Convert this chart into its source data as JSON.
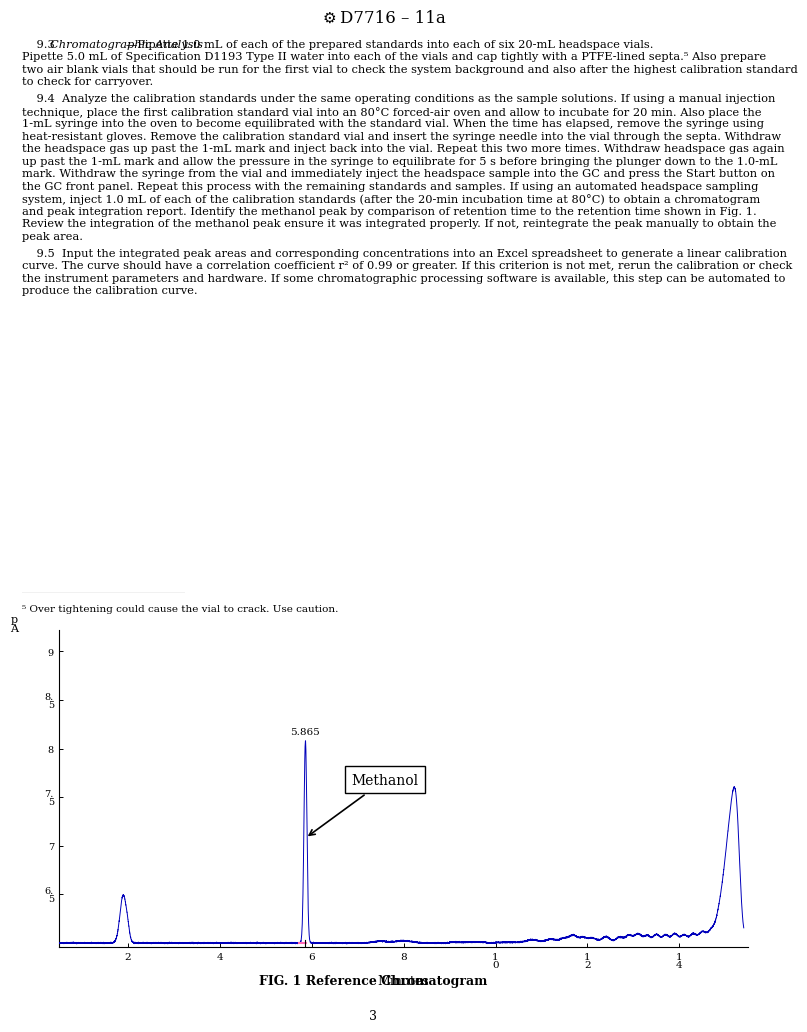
{
  "title": "D7716 – 11a",
  "fig_caption": "FIG. 1 Reference Chromatogram",
  "page_number": "3",
  "ylabel_top": "p",
  "ylabel_bot": "A",
  "xlabel": "Minutes",
  "line_color": "#0000BB",
  "pink_color": "#FF69B4",
  "annotation_label": "Methanol",
  "peak_label": "5.865",
  "peak_x": 5.865,
  "ylim_bottom": 5.96,
  "ylim_top": 9.22,
  "xlim_left": 0.5,
  "xlim_right": 15.5,
  "ytick_positions": [
    6.5,
    7.0,
    7.5,
    8.0,
    8.5,
    9.0
  ],
  "xtick_positions": [
    2,
    4,
    6,
    8,
    10,
    12,
    14
  ],
  "footnote": "⁵ Over tightening could cause the vial to crack. Use caution.",
  "para93_indent": "    9.3  ",
  "para93_italic": "Chromatographic Analysis",
  "para93_rest": "—Pipette 1.0 mL of each of the prepared standards into each of six 20-mL headspace vials. Pipette 5.0 mL of Specification D1193 Type II water into each of the vials and cap tightly with a PTFE-lined septa.5 Also prepare two air blank vials that should be run for the first vial to check the system background and also after the highest calibration standard to check for carryover.",
  "para94": "    9.4  Analyze the calibration standards under the same operating conditions as the sample solutions. If using a manual injection technique, place the first calibration standard vial into an 80°C forced-air oven and allow to incubate for 20 min. Also place the 1-mL syringe into the oven to become equilibrated with the standard vial. When the time has elapsed, remove the syringe using heat-resistant gloves. Remove the calibration standard vial and insert the syringe needle into the vial through the septa. Withdraw the headspace gas up past the 1-mL mark and inject back into the vial. Repeat this two more times. Withdraw headspace gas again up past the 1-mL mark and allow the pressure in the syringe to equilibrate for 5 s before bringing the plunger down to the 1.0-mL mark. Withdraw the syringe from the vial and immediately inject the headspace sample into the GC and press the Start button on the GC front panel. Repeat this process with the remaining standards and samples. If using an automated headspace sampling system, inject 1.0 mL of each of the calibration standards (after the 20-min incubation time at 80°C) to obtain a chromatogram and peak integration report. Identify the methanol peak by comparison of retention time to the retention time shown in Fig. 1. Review the integration of the methanol peak ensure it was integrated properly. If not, reintegrate the peak manually to obtain the peak area.",
  "para95": "    9.5  Input the integrated peak areas and corresponding concentrations into an Excel spreadsheet to generate a linear calibration curve. The curve should have a correlation coefficient r2 of 0.99 or greater. If this criterion is not met, rerun the calibration or check the instrument parameters and hardware. If some chromatographic processing software is available, this step can be automated to produce the calibration curve."
}
